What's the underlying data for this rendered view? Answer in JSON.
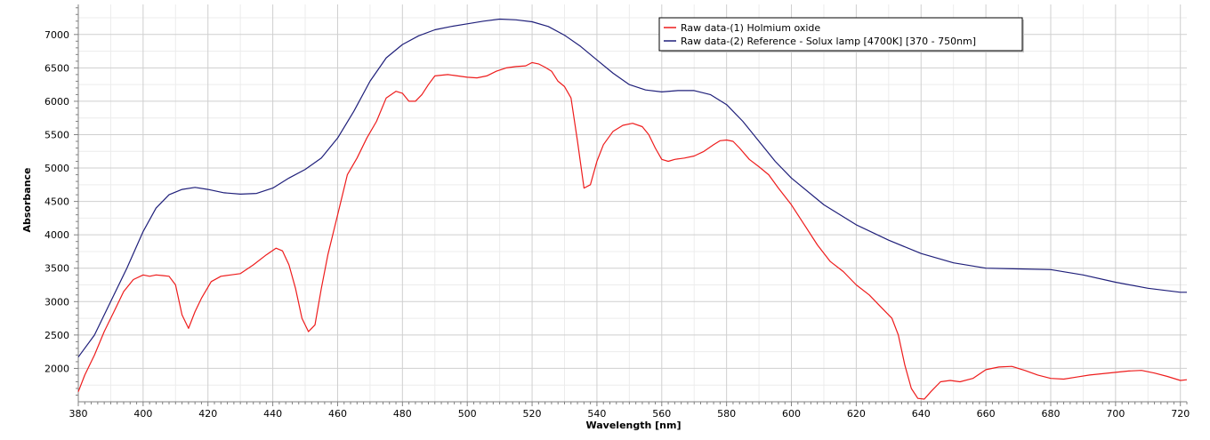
{
  "chart_data": {
    "type": "line",
    "xlabel": "Wavelength [nm]",
    "ylabel": "Absorbance",
    "xlim": [
      380,
      722
    ],
    "ylim": [
      1500,
      7450
    ],
    "x_ticks": [
      380,
      400,
      420,
      440,
      460,
      480,
      500,
      520,
      540,
      560,
      580,
      600,
      620,
      640,
      660,
      680,
      700,
      720
    ],
    "y_ticks": [
      2000,
      2500,
      3000,
      3500,
      4000,
      4500,
      5000,
      5500,
      6000,
      6500,
      7000
    ],
    "grid": true,
    "legend_position": "top-right",
    "series": [
      {
        "name": "Raw data-(1) Holmium oxide",
        "color": "#ee1c1c",
        "x": [
          380,
          382,
          385,
          388,
          391,
          394,
          397,
          400,
          402,
          404,
          406,
          408,
          410,
          412,
          414,
          416,
          418,
          421,
          424,
          427,
          430,
          434,
          438,
          441,
          443,
          445,
          447,
          449,
          451,
          453,
          455,
          457,
          460,
          463,
          466,
          469,
          472,
          475,
          478,
          480,
          482,
          484,
          486,
          488,
          490,
          492,
          494,
          497,
          500,
          503,
          506,
          509,
          512,
          515,
          518,
          520,
          522,
          524,
          526,
          528,
          530,
          532,
          534,
          536,
          538,
          540,
          542,
          545,
          548,
          551,
          554,
          556,
          558,
          560,
          562,
          564,
          567,
          570,
          573,
          576,
          578,
          580,
          582,
          584,
          587,
          590,
          593,
          596,
          600,
          604,
          608,
          612,
          616,
          620,
          624,
          628,
          631,
          633,
          635,
          637,
          639,
          641,
          643,
          646,
          649,
          652,
          656,
          660,
          664,
          668,
          672,
          676,
          680,
          684,
          688,
          692,
          696,
          700,
          704,
          708,
          712,
          716,
          720,
          722
        ],
        "y": [
          1650,
          1900,
          2200,
          2550,
          2850,
          3150,
          3330,
          3400,
          3380,
          3400,
          3390,
          3380,
          3250,
          2800,
          2600,
          2850,
          3050,
          3300,
          3380,
          3400,
          3420,
          3550,
          3700,
          3800,
          3760,
          3550,
          3200,
          2750,
          2550,
          2650,
          3200,
          3700,
          4300,
          4900,
          5150,
          5450,
          5700,
          6050,
          6150,
          6120,
          6000,
          6000,
          6100,
          6250,
          6380,
          6390,
          6400,
          6380,
          6360,
          6350,
          6380,
          6450,
          6500,
          6520,
          6530,
          6580,
          6560,
          6510,
          6450,
          6300,
          6220,
          6050,
          5400,
          4700,
          4750,
          5100,
          5350,
          5550,
          5640,
          5670,
          5620,
          5500,
          5300,
          5130,
          5100,
          5130,
          5150,
          5180,
          5250,
          5350,
          5410,
          5420,
          5400,
          5300,
          5130,
          5020,
          4900,
          4700,
          4450,
          4150,
          3850,
          3600,
          3450,
          3250,
          3100,
          2900,
          2750,
          2500,
          2050,
          1700,
          1550,
          1540,
          1650,
          1800,
          1820,
          1800,
          1850,
          1980,
          2020,
          2030,
          1970,
          1900,
          1850,
          1840,
          1870,
          1900,
          1920,
          1940,
          1960,
          1970,
          1930,
          1880,
          1820,
          1830
        ]
      },
      {
        "name": "Raw data-(2) Reference - Solux lamp [4700K] [370 - 750nm]",
        "color": "#1f1f7a",
        "x": [
          380,
          385,
          390,
          395,
          400,
          404,
          408,
          412,
          416,
          420,
          425,
          430,
          435,
          440,
          445,
          450,
          455,
          460,
          465,
          470,
          475,
          480,
          485,
          490,
          495,
          500,
          505,
          510,
          515,
          520,
          525,
          530,
          535,
          540,
          545,
          550,
          555,
          560,
          565,
          570,
          575,
          580,
          585,
          590,
          595,
          600,
          610,
          620,
          630,
          640,
          650,
          660,
          670,
          680,
          690,
          700,
          710,
          720,
          722
        ],
        "y": [
          2170,
          2500,
          3000,
          3500,
          4050,
          4400,
          4600,
          4680,
          4710,
          4680,
          4630,
          4610,
          4620,
          4700,
          4850,
          4980,
          5150,
          5450,
          5850,
          6300,
          6650,
          6850,
          6980,
          7070,
          7120,
          7160,
          7200,
          7230,
          7220,
          7190,
          7120,
          6990,
          6820,
          6620,
          6420,
          6250,
          6170,
          6140,
          6160,
          6160,
          6100,
          5950,
          5700,
          5400,
          5100,
          4850,
          4450,
          4150,
          3920,
          3720,
          3580,
          3500,
          3490,
          3480,
          3400,
          3290,
          3200,
          3140,
          3140
        ]
      }
    ]
  }
}
